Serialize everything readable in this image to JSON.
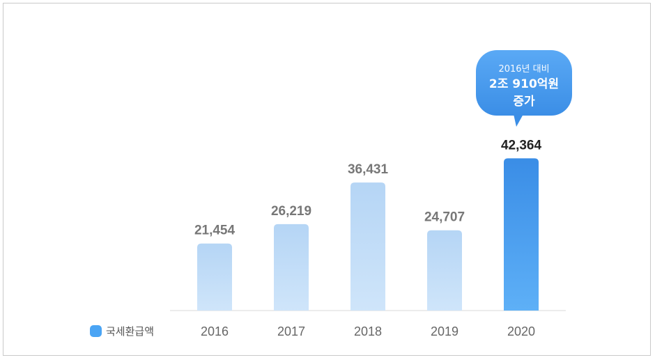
{
  "chart_data": {
    "type": "bar",
    "categories": [
      "2016",
      "2017",
      "2018",
      "2019",
      "2020"
    ],
    "series": [
      {
        "name": "국세환급액",
        "values": [
          21454,
          26219,
          36431,
          24707,
          42364
        ]
      }
    ],
    "data_labels": [
      "21,454",
      "26,219",
      "36,431",
      "24,707",
      "42,364"
    ],
    "ylim": [
      5000,
      45000
    ],
    "grid": false,
    "legend": "bottom-left",
    "highlight_index": 4,
    "colors": {
      "bar": "#b7d7f6",
      "highlight": "#3d8fe6",
      "label": "#777777",
      "highlight_label": "#222222",
      "legend": "#4aa4f4"
    },
    "annotation": {
      "line1": "2016년 대비",
      "line2": "2조 910억원",
      "line3": "증가"
    }
  }
}
